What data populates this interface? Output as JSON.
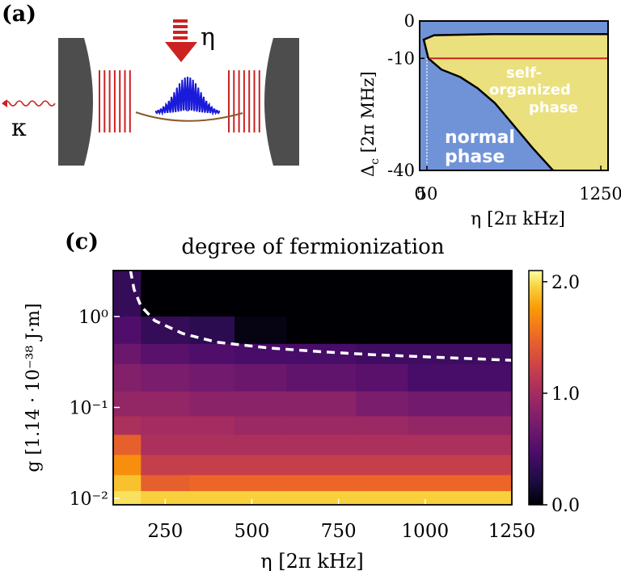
{
  "panel_a": {
    "label": "(a)",
    "pump_symbol": "η",
    "loss_symbol": "κ"
  },
  "panel_b": {
    "region_labels": {
      "self_organized": [
        "self-",
        "organized",
        "phase"
      ],
      "normal": [
        "normal",
        "phase"
      ]
    }
  },
  "panel_c": {
    "label": "(c)"
  },
  "colors": {
    "phase_normal": "#7093d8",
    "phase_self_organized": "#ebe07e",
    "threshold_line": "#cc2222",
    "mirror": "#4d4d4d",
    "optical_lattice": "#cc2222",
    "atom_cloud": "#1a1adb",
    "trap": "#8b5a2b",
    "boundary_dashed": "#ffffff"
  },
  "chart_data": [
    {
      "type": "area",
      "title": "",
      "xlabel": "η [2π kHz]",
      "ylabel": "Δc [2π MHz]",
      "xlim": [
        0,
        1300
      ],
      "ylim": [
        -40,
        0
      ],
      "x_ticks": [
        "0",
        "50",
        "1250"
      ],
      "x_tick_values": [
        0,
        50,
        1250
      ],
      "y_ticks": [
        "0",
        "-10",
        "-40"
      ],
      "y_tick_values": [
        0,
        -10,
        -40
      ],
      "phase_boundary": [
        {
          "x": 1250,
          "y": -3.5
        },
        {
          "x": 950,
          "y": -3.5
        },
        {
          "x": 500,
          "y": -3.5
        },
        {
          "x": 100,
          "y": -3.8
        },
        {
          "x": 28,
          "y": -5.0
        },
        {
          "x": 60,
          "y": -10.0
        },
        {
          "x": 150,
          "y": -13.0
        },
        {
          "x": 280,
          "y": -15.0
        },
        {
          "x": 400,
          "y": -18.0
        },
        {
          "x": 520,
          "y": -22.0
        },
        {
          "x": 650,
          "y": -28.0
        },
        {
          "x": 780,
          "y": -34.0
        },
        {
          "x": 920,
          "y": -40.0
        }
      ],
      "threshold_line_y": -10,
      "vertical_marker_x": 50
    },
    {
      "type": "heatmap",
      "title": "degree of fermionization",
      "xlabel": "η [2π kHz]",
      "ylabel": "g [1.14 · 10⁻³⁸ J·m]",
      "x_scale": "linear",
      "y_scale": "log",
      "xlim": [
        100,
        1250
      ],
      "ylim": [
        0.0085,
        3.2
      ],
      "x_ticks": [
        "250",
        "500",
        "750",
        "1000",
        "1250"
      ],
      "x_tick_values": [
        250,
        500,
        750,
        1000,
        1250
      ],
      "y_ticks": [
        "10⁰",
        "10⁻¹",
        "10⁻²"
      ],
      "y_tick_values": [
        1,
        0.1,
        0.01
      ],
      "colorbar": {
        "ticks": [
          "2.0",
          "1.0",
          "0.0"
        ],
        "tick_values": [
          2.0,
          1.0,
          0.0
        ],
        "range": [
          0,
          2.1
        ]
      },
      "x_bins": [
        100,
        180,
        320,
        450,
        600,
        800,
        950,
        1250
      ],
      "g_bins": [
        3.2,
        1.0,
        0.5,
        0.3,
        0.15,
        0.08,
        0.05,
        0.03,
        0.018,
        0.012,
        0.0085
      ],
      "values": [
        [
          0.35,
          0.0,
          0.0,
          0.0,
          0.0,
          0.0,
          0.0
        ],
        [
          0.5,
          0.35,
          0.3,
          0.05,
          0.0,
          0.0,
          0.0
        ],
        [
          0.65,
          0.55,
          0.5,
          0.45,
          0.45,
          0.4,
          0.4
        ],
        [
          0.8,
          0.75,
          0.7,
          0.65,
          0.6,
          0.55,
          0.45
        ],
        [
          0.9,
          0.9,
          0.85,
          0.85,
          0.85,
          0.75,
          0.7
        ],
        [
          1.05,
          1.0,
          1.0,
          0.95,
          0.95,
          0.95,
          0.9
        ],
        [
          1.45,
          1.05,
          1.05,
          1.05,
          1.05,
          1.05,
          1.05
        ],
        [
          1.7,
          1.2,
          1.2,
          1.2,
          1.2,
          1.2,
          1.2
        ],
        [
          1.9,
          1.45,
          1.5,
          1.5,
          1.5,
          1.5,
          1.5
        ],
        [
          2.0,
          1.95,
          1.95,
          1.95,
          1.95,
          1.95,
          1.95
        ]
      ],
      "boundary_curve": [
        {
          "x": 150,
          "y": 3.2
        },
        {
          "x": 160,
          "y": 2.0
        },
        {
          "x": 180,
          "y": 1.3
        },
        {
          "x": 220,
          "y": 0.9
        },
        {
          "x": 300,
          "y": 0.65
        },
        {
          "x": 400,
          "y": 0.52
        },
        {
          "x": 550,
          "y": 0.45
        },
        {
          "x": 700,
          "y": 0.41
        },
        {
          "x": 850,
          "y": 0.38
        },
        {
          "x": 1000,
          "y": 0.36
        },
        {
          "x": 1250,
          "y": 0.33
        }
      ]
    }
  ]
}
